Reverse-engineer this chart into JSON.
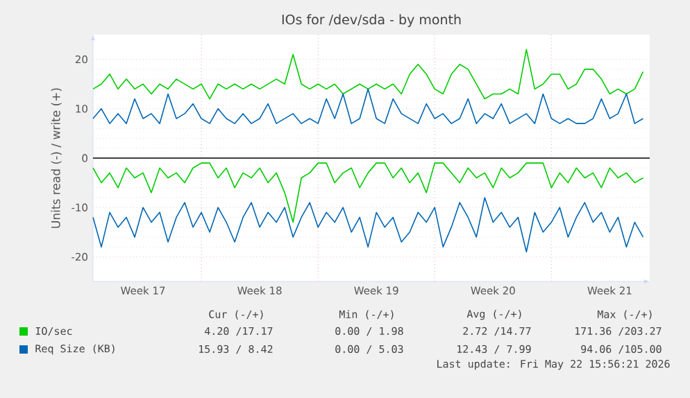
{
  "chart_data": {
    "type": "line",
    "title": "IOs for /dev/sda - by month",
    "ylabel": "Units read (-) / write (+)",
    "categories": [
      null,
      null,
      null,
      null,
      null,
      null,
      "Week 17",
      null,
      null,
      null,
      null,
      null,
      null,
      null,
      null,
      null,
      null,
      null,
      null,
      null,
      "Week 18",
      null,
      null,
      null,
      null,
      null,
      null,
      null,
      null,
      null,
      null,
      null,
      null,
      null,
      "Week 19",
      null,
      null,
      null,
      null,
      null,
      null,
      null,
      null,
      null,
      null,
      null,
      null,
      null,
      "Week 20",
      null,
      null,
      null,
      null,
      null,
      null,
      null,
      null,
      null,
      null,
      null,
      null,
      null,
      "Week 21",
      null,
      null,
      null,
      null
    ],
    "series": [
      {
        "name": "IO/sec",
        "color": "#00cc00",
        "values": [
          14,
          15,
          17,
          14,
          16,
          14,
          15,
          13,
          15,
          14,
          16,
          15,
          14,
          15,
          12,
          15,
          14,
          15,
          14,
          15,
          14,
          15,
          16,
          15,
          21,
          15,
          14,
          15,
          14,
          15,
          13,
          14,
          15,
          14,
          15,
          14,
          15,
          13,
          17,
          19,
          17,
          14,
          13,
          17,
          19,
          18,
          15,
          12,
          13,
          13,
          14,
          13,
          22,
          14,
          15,
          17,
          17,
          14,
          15,
          18,
          18,
          16,
          13,
          14,
          13,
          14,
          17.5
        ]
      },
      {
        "color": "#00cc00",
        "values": [
          -2,
          -5,
          -3,
          -6,
          -2,
          -4,
          -3,
          -7,
          -2,
          -4,
          -3,
          -5,
          -2,
          -1,
          -1,
          -4,
          -2,
          -6,
          -3,
          -4,
          -2,
          -5,
          -3,
          -7,
          -13,
          -4,
          -3,
          -1,
          -1,
          -5,
          -3,
          -2,
          -6,
          -3,
          -1,
          -1,
          -4,
          -2,
          -5,
          -3,
          -7,
          -1,
          -1,
          -3,
          -5,
          -2,
          -4,
          -3,
          -6,
          -2,
          -4,
          -3,
          -1,
          -1,
          -1,
          -6,
          -3,
          -5,
          -2,
          -4,
          -3,
          -6,
          -2,
          -4,
          -3,
          -5,
          -4
        ]
      },
      {
        "name": "Req Size (KB)",
        "color": "#0066b3",
        "values": [
          8,
          10,
          7,
          9,
          7,
          12,
          8,
          9,
          7,
          13,
          8,
          9,
          11,
          8,
          7,
          10,
          8,
          7,
          9,
          7,
          8,
          11,
          7,
          8,
          9,
          7,
          8,
          7,
          12,
          8,
          13,
          7,
          8,
          14,
          8,
          7,
          12,
          9,
          8,
          7,
          11,
          8,
          9,
          7,
          8,
          12,
          7,
          9,
          8,
          11,
          7,
          8,
          9,
          7,
          13,
          8,
          7,
          8,
          7,
          7,
          8,
          12,
          8,
          9,
          13,
          7,
          8
        ]
      },
      {
        "color": "#0066b3",
        "values": [
          -12,
          -18,
          -11,
          -14,
          -12,
          -16,
          -10,
          -13,
          -11,
          -17,
          -12,
          -9,
          -14,
          -11,
          -15,
          -10,
          -13,
          -17,
          -12,
          -9,
          -14,
          -11,
          -13,
          -10,
          -16,
          -12,
          -9,
          -14,
          -11,
          -13,
          -10,
          -15,
          -12,
          -18,
          -11,
          -14,
          -12,
          -17,
          -15,
          -11,
          -13,
          -10,
          -18,
          -14,
          -9,
          -12,
          -16,
          -8,
          -13,
          -11,
          -14,
          -12,
          -19,
          -11,
          -15,
          -13,
          -10,
          -16,
          -12,
          -9,
          -13,
          -11,
          -15,
          -12,
          -18,
          -13,
          -16
        ]
      }
    ],
    "ylim": [
      -25,
      25
    ],
    "yticks": [
      -20,
      -10,
      0,
      10,
      20
    ],
    "ref_lines": [
      {
        "axis": "y",
        "value": 0,
        "color": "#000000"
      }
    ],
    "grid": true,
    "legend": "bottom",
    "marker": "none",
    "line_style": "solid",
    "annotations": [
      "Cur (-/+)",
      "Min (-/+)",
      "Avg (-/+)",
      "Max (-/+)",
      "4.20 /17.17",
      "0.00 / 1.98",
      "2.72 /14.77",
      "171.36 /203.27",
      "15.93 / 8.42",
      "0.00 / 5.03",
      "12.43 / 7.99",
      "94.06 /105.00",
      "Last update: Fri May 22 15:56:21 2026"
    ]
  }
}
